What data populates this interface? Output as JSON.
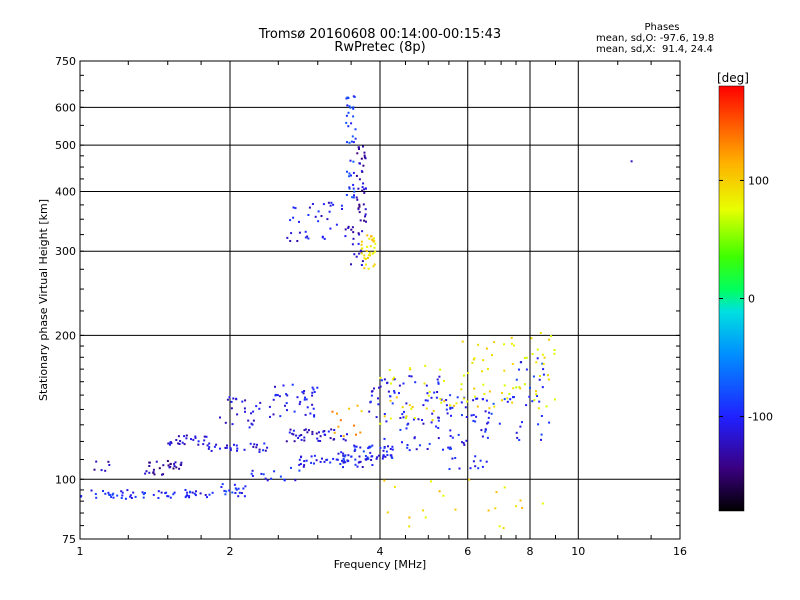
{
  "title": {
    "line1": "Tromsø 20160608 00:14:00-00:15:43",
    "line2": "RwPretec (8p)"
  },
  "phases": {
    "header": "Phases",
    "line_o": "mean, sd,O: -97.6, 19.8",
    "line_x": "mean, sd,X:  91.4, 24.4"
  },
  "colorbar": {
    "unit_label": "[deg]",
    "ticks": [
      "100",
      "0",
      "-100"
    ],
    "tick_values": [
      100,
      0,
      -100
    ],
    "range": [
      -180,
      180
    ]
  },
  "chart_data": {
    "type": "scatter",
    "xlabel": "Frequency [MHz]",
    "ylabel": "Stationary phase Virtual Height [km]",
    "xscale": "log",
    "yscale": "log",
    "xlim": [
      1,
      16
    ],
    "ylim": [
      75,
      750
    ],
    "x_ticks": [
      1,
      2,
      4,
      6,
      8,
      10,
      16
    ],
    "x_tick_labels": [
      "1",
      "2",
      "4",
      "6",
      "8",
      "10",
      "16"
    ],
    "y_ticks": [
      75,
      100,
      200,
      300,
      400,
      500,
      600,
      750
    ],
    "y_tick_labels": [
      "75",
      "100",
      "200",
      "300",
      "400",
      "500",
      "600",
      "750"
    ],
    "grid": true,
    "point_clusters": [
      {
        "x_range": [
          1.0,
          1.85
        ],
        "y_range": [
          91,
          95
        ],
        "phase": -100,
        "count": 60
      },
      {
        "x_range": [
          1.85,
          2.15
        ],
        "y_range": [
          92,
          98
        ],
        "phase": -95,
        "count": 18
      },
      {
        "x_range": [
          1.05,
          1.15
        ],
        "y_range": [
          104,
          110
        ],
        "phase": -130,
        "count": 6
      },
      {
        "x_range": [
          1.35,
          1.6
        ],
        "y_range": [
          102,
          110
        ],
        "phase": -135,
        "count": 30
      },
      {
        "x_range": [
          1.5,
          1.8
        ],
        "y_range": [
          118,
          124
        ],
        "phase": -115,
        "count": 25
      },
      {
        "x_range": [
          1.8,
          2.4
        ],
        "y_range": [
          114,
          119
        ],
        "phase": -110,
        "count": 30
      },
      {
        "x_range": [
          1.9,
          2.3
        ],
        "y_range": [
          128,
          150
        ],
        "phase": -115,
        "count": 25
      },
      {
        "x_range": [
          2.4,
          3.0
        ],
        "y_range": [
          135,
          158
        ],
        "phase": -110,
        "count": 40
      },
      {
        "x_range": [
          2.6,
          3.5
        ],
        "y_range": [
          120,
          128
        ],
        "phase": -115,
        "count": 40
      },
      {
        "x_range": [
          2.2,
          2.8
        ],
        "y_range": [
          98,
          106
        ],
        "phase": -100,
        "count": 15
      },
      {
        "x_range": [
          2.7,
          3.9
        ],
        "y_range": [
          106,
          112
        ],
        "phase": -105,
        "count": 45
      },
      {
        "x_range": [
          3.3,
          4.3
        ],
        "y_range": [
          108,
          118
        ],
        "phase": -100,
        "count": 50
      },
      {
        "x_range": [
          3.2,
          3.8
        ],
        "y_range": [
          122,
          150
        ],
        "phase": 120,
        "count": 12
      },
      {
        "x_range": [
          3.8,
          5.6
        ],
        "y_range": [
          115,
          165
        ],
        "phase": -105,
        "count": 90
      },
      {
        "x_range": [
          4.0,
          5.8
        ],
        "y_range": [
          130,
          175
        ],
        "phase": 90,
        "count": 35
      },
      {
        "x_range": [
          5.4,
          6.6
        ],
        "y_range": [
          105,
          150
        ],
        "phase": -100,
        "count": 50
      },
      {
        "x_range": [
          5.8,
          7.2
        ],
        "y_range": [
          140,
          195
        ],
        "phase": 90,
        "count": 30
      },
      {
        "x_range": [
          6.4,
          8.8
        ],
        "y_range": [
          120,
          180
        ],
        "phase": -95,
        "count": 40
      },
      {
        "x_range": [
          7.2,
          9.2
        ],
        "y_range": [
          140,
          210
        ],
        "phase": 85,
        "count": 35
      },
      {
        "x_range": [
          4.0,
          8.5
        ],
        "y_range": [
          78,
          100
        ],
        "phase": 95,
        "count": 22
      },
      {
        "x_range": [
          2.6,
          3.4
        ],
        "y_range": [
          315,
          380
        ],
        "phase": -110,
        "count": 35
      },
      {
        "x_range": [
          3.4,
          3.7
        ],
        "y_range": [
          280,
          340
        ],
        "phase": -120,
        "count": 20
      },
      {
        "x_range": [
          3.42,
          3.58
        ],
        "y_range": [
          380,
          640
        ],
        "phase": -90,
        "count": 40
      },
      {
        "x_range": [
          3.58,
          3.75
        ],
        "y_range": [
          330,
          500
        ],
        "phase": -130,
        "count": 40
      },
      {
        "x_range": [
          3.65,
          3.92
        ],
        "y_range": [
          272,
          325
        ],
        "phase": 95,
        "count": 35
      },
      {
        "x_range": [
          12.7,
          12.9
        ],
        "y_range": [
          458,
          465
        ],
        "phase": -110,
        "count": 1
      }
    ]
  }
}
